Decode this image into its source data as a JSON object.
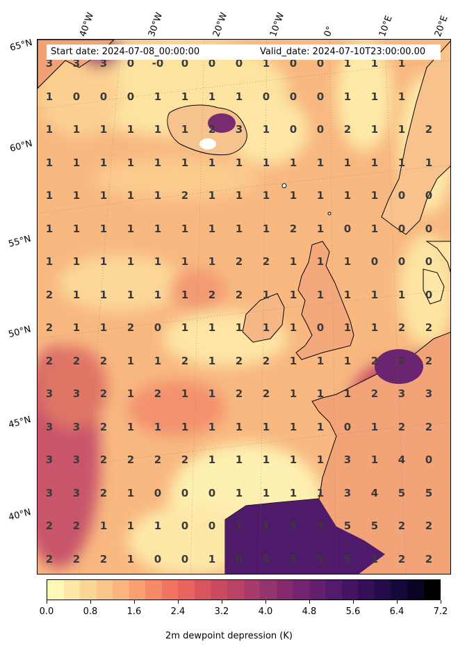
{
  "header": {
    "start_date": "Start date: 2024-07-08_00:00:00",
    "valid_date": "Valid_date: 2024-07-10T23:00:00.00"
  },
  "longitude_labels": [
    "40°W",
    "30°W",
    "20°W",
    "10°W",
    "0°",
    "10°E",
    "20°E"
  ],
  "latitude_labels": [
    "65°N",
    "60°N",
    "55°N",
    "50°N",
    "45°N",
    "40°N"
  ],
  "grid_values": [
    [
      "3",
      "3",
      "3",
      "0",
      "-0",
      "0",
      "0",
      "0",
      "1",
      "0",
      "0",
      "1",
      "1",
      "1",
      ""
    ],
    [
      "1",
      "0",
      "0",
      "0",
      "1",
      "1",
      "1",
      "1",
      "0",
      "0",
      "0",
      "1",
      "1",
      "1",
      ""
    ],
    [
      "1",
      "1",
      "1",
      "1",
      "1",
      "1",
      "2",
      "3",
      "1",
      "0",
      "0",
      "2",
      "1",
      "1",
      "2"
    ],
    [
      "1",
      "1",
      "1",
      "1",
      "1",
      "1",
      "1",
      "1",
      "1",
      "1",
      "1",
      "1",
      "1",
      "1",
      "1"
    ],
    [
      "1",
      "1",
      "1",
      "1",
      "1",
      "2",
      "1",
      "1",
      "1",
      "1",
      "1",
      "1",
      "1",
      "0",
      "0"
    ],
    [
      "1",
      "1",
      "1",
      "1",
      "1",
      "1",
      "1",
      "1",
      "1",
      "2",
      "1",
      "0",
      "1",
      "0",
      "0"
    ],
    [
      "1",
      "1",
      "1",
      "1",
      "1",
      "1",
      "1",
      "2",
      "2",
      "1",
      "1",
      "1",
      "0",
      "0",
      "0"
    ],
    [
      "2",
      "1",
      "1",
      "1",
      "1",
      "1",
      "2",
      "2",
      "1",
      "1",
      "1",
      "1",
      "1",
      "1",
      "0"
    ],
    [
      "2",
      "1",
      "1",
      "2",
      "0",
      "1",
      "1",
      "1",
      "1",
      "1",
      "0",
      "1",
      "1",
      "2",
      "2"
    ],
    [
      "2",
      "2",
      "2",
      "1",
      "1",
      "2",
      "1",
      "2",
      "2",
      "1",
      "1",
      "1",
      "2",
      "2",
      "2"
    ],
    [
      "3",
      "3",
      "2",
      "1",
      "2",
      "1",
      "1",
      "2",
      "2",
      "1",
      "1",
      "1",
      "2",
      "3",
      "3"
    ],
    [
      "3",
      "3",
      "2",
      "1",
      "1",
      "1",
      "1",
      "1",
      "1",
      "1",
      "1",
      "0",
      "1",
      "2",
      "2"
    ],
    [
      "3",
      "3",
      "2",
      "2",
      "2",
      "2",
      "1",
      "1",
      "1",
      "1",
      "1",
      "3",
      "1",
      "4",
      "0"
    ],
    [
      "3",
      "3",
      "2",
      "1",
      "0",
      "0",
      "0",
      "1",
      "1",
      "1",
      "1",
      "3",
      "4",
      "5",
      "5"
    ],
    [
      "2",
      "2",
      "1",
      "1",
      "1",
      "0",
      "0",
      "1",
      "1",
      "5",
      "3",
      "5",
      "5",
      "2",
      "2"
    ],
    [
      "2",
      "2",
      "2",
      "1",
      "0",
      "0",
      "1",
      "0",
      "5",
      "5",
      "5",
      "5",
      "1",
      "2",
      "2"
    ]
  ],
  "colorbar": {
    "label": "2m dewpoint depression (K)",
    "tick_labels": [
      "0.0",
      "0.8",
      "1.6",
      "2.4",
      "3.2",
      "4.0",
      "4.8",
      "5.6",
      "6.4",
      "7.2"
    ],
    "colors": [
      "#fcf8b8",
      "#fbe7a6",
      "#fbd797",
      "#fbc68a",
      "#fbb47e",
      "#fb9f73",
      "#f88a6a",
      "#f27563",
      "#e8645f",
      "#da565f",
      "#ca4b61",
      "#b94265",
      "#a73a69",
      "#96326d",
      "#86296f",
      "#752470",
      "#651f6f",
      "#551a6b",
      "#441463",
      "#340f58",
      "#240b4a",
      "#160838",
      "#0b0425",
      "#000004"
    ]
  }
}
